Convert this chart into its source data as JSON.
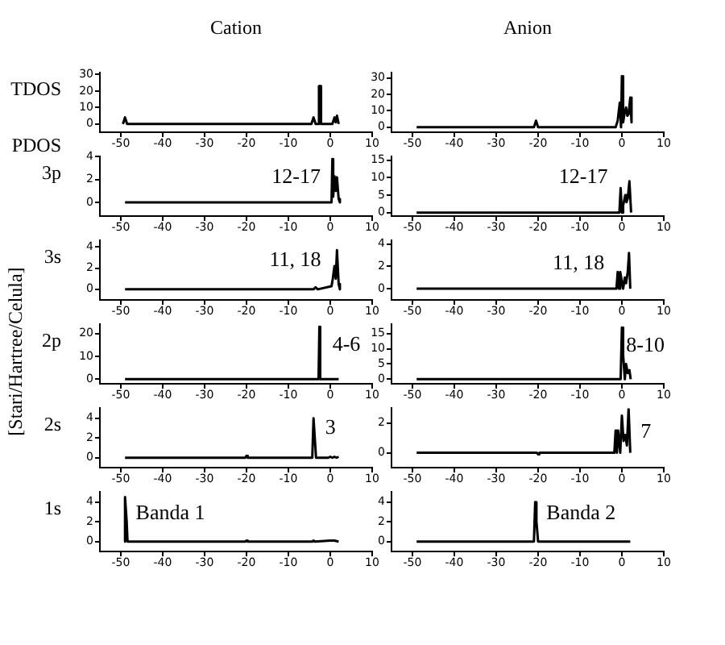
{
  "chart_data": [
    {
      "type": "line",
      "title": "Cation",
      "ylabel": "TDOS",
      "color": "#000000",
      "x": [
        -49.5,
        -49,
        -48.5,
        -4.5,
        -4,
        -3.5,
        -2.8,
        -2.7,
        -2.3,
        -2.2,
        0.5,
        1,
        1.3,
        1.6,
        2
      ],
      "values": [
        0,
        4,
        0,
        0,
        4,
        0,
        0,
        23,
        23,
        0,
        0,
        4,
        1,
        5,
        0
      ],
      "xlim": [
        -55,
        10
      ],
      "xticks": [
        -50,
        -40,
        -30,
        -20,
        -10,
        0,
        10
      ],
      "ylim": [
        -5,
        31
      ],
      "yticks": [
        0,
        10,
        20,
        30
      ]
    },
    {
      "type": "line",
      "title": "Anion",
      "color": "#000000",
      "x": [
        -49,
        -21,
        -20.5,
        -20,
        -1.5,
        -1,
        -0.5,
        -0.2,
        0,
        0.3,
        0.6,
        1,
        1.3,
        1.6,
        2,
        2.3
      ],
      "values": [
        0,
        0,
        4,
        0,
        0,
        4,
        15,
        0,
        31,
        3,
        8,
        12,
        7,
        8,
        18,
        3
      ],
      "xlim": [
        -55,
        10
      ],
      "xticks": [
        -50,
        -40,
        -30,
        -20,
        -10,
        0,
        10
      ],
      "ylim": [
        -3,
        33
      ],
      "yticks": [
        0,
        10,
        20,
        30
      ]
    },
    {
      "type": "line",
      "ylabel": "3p",
      "color": "#000000",
      "x": [
        -49,
        0.3,
        0.5,
        0.7,
        1,
        1.3,
        1.6,
        2,
        2.3
      ],
      "values": [
        0,
        0,
        3.8,
        0.5,
        2.3,
        1,
        2.2,
        0.3,
        0
      ],
      "xlim": [
        -55,
        10
      ],
      "xticks": [
        -50,
        -40,
        -30,
        -20,
        -10,
        0,
        10
      ],
      "ylim": [
        -1.2,
        4
      ],
      "yticks": [
        0,
        2,
        4
      ],
      "annotations": [
        "PDOS",
        "12-17"
      ]
    },
    {
      "type": "line",
      "color": "#000000",
      "x": [
        -49,
        -0.6,
        -0.3,
        0,
        0.3,
        0.8,
        1.1,
        1.4,
        1.8,
        2.2
      ],
      "values": [
        0,
        0,
        7,
        0,
        2,
        5,
        3,
        4,
        9,
        0
      ],
      "xlim": [
        -55,
        10
      ],
      "xticks": [
        -50,
        -40,
        -30,
        -20,
        -10,
        0,
        10
      ],
      "ylim": [
        -1,
        16
      ],
      "yticks": [
        0,
        5,
        10,
        15
      ],
      "annotations": [
        "12-17"
      ]
    },
    {
      "type": "line",
      "ylabel": "3s",
      "color": "#000000",
      "x": [
        -49,
        -4,
        -3.5,
        -3,
        0.3,
        0.6,
        1,
        1.3,
        1.6,
        2,
        2.3
      ],
      "values": [
        0,
        0,
        0.2,
        0,
        0.3,
        1,
        2.2,
        1,
        3.7,
        0.5,
        0
      ],
      "xlim": [
        -55,
        10
      ],
      "xticks": [
        -50,
        -40,
        -30,
        -20,
        -10,
        0,
        10
      ],
      "ylim": [
        -1,
        4.6
      ],
      "yticks": [
        0,
        2,
        4
      ],
      "annotations": [
        "11, 18"
      ]
    },
    {
      "type": "line",
      "color": "#000000",
      "x": [
        -49,
        -1.3,
        -1,
        -0.7,
        -0.4,
        0.3,
        0.7,
        1,
        1.4,
        1.7,
        2,
        2.3
      ],
      "values": [
        0,
        0,
        1.5,
        0,
        1.5,
        0,
        1,
        0.5,
        1.5,
        3.2,
        0,
        0
      ],
      "xlim": [
        -55,
        10
      ],
      "xticks": [
        -50,
        -40,
        -30,
        -20,
        -10,
        0,
        10
      ],
      "ylim": [
        -1,
        4.3
      ],
      "yticks": [
        0,
        2,
        4
      ],
      "annotations": [
        "11, 18"
      ]
    },
    {
      "type": "line",
      "ylabel": "2p",
      "color": "#000000",
      "x": [
        -49,
        -2.8,
        -2.6,
        -2.4,
        2
      ],
      "values": [
        0,
        0,
        23,
        0,
        0
      ],
      "xlim": [
        -55,
        10
      ],
      "xticks": [
        -50,
        -40,
        -30,
        -20,
        -10,
        0,
        10
      ],
      "ylim": [
        -2,
        24
      ],
      "yticks": [
        0,
        10,
        20
      ],
      "annotations": [
        "[Stari/Hartree/Celula]",
        "4-6"
      ]
    },
    {
      "type": "line",
      "color": "#000000",
      "x": [
        -49,
        -0.3,
        0,
        0.3,
        0.7,
        1,
        1.4,
        1.8,
        2.1
      ],
      "values": [
        0,
        0,
        17,
        8,
        0,
        5,
        2,
        3,
        0
      ],
      "xlim": [
        -55,
        10
      ],
      "xticks": [
        -50,
        -40,
        -30,
        -20,
        -10,
        0,
        10
      ],
      "ylim": [
        -1.5,
        18
      ],
      "yticks": [
        0,
        5,
        10,
        15
      ],
      "annotations": [
        "8-10"
      ]
    },
    {
      "type": "line",
      "ylabel": "2s",
      "color": "#000000",
      "x": [
        -49,
        -20.3,
        -20,
        -19.7,
        -4.3,
        -4,
        -3.7,
        -3.4,
        -0.5,
        0,
        0.5,
        1,
        1.5,
        2
      ],
      "values": [
        0,
        0,
        0.2,
        0,
        0,
        4,
        2,
        0,
        0,
        0.1,
        0,
        0.1,
        0,
        0.1
      ],
      "xlim": [
        -55,
        10
      ],
      "xticks": [
        -50,
        -40,
        -30,
        -20,
        -10,
        0,
        10
      ],
      "ylim": [
        -1,
        5
      ],
      "yticks": [
        0,
        2,
        4
      ],
      "annotations": [
        "3"
      ]
    },
    {
      "type": "line",
      "color": "#000000",
      "x": [
        -49,
        -20.3,
        -20,
        -19.7,
        -1.8,
        -1.5,
        -1.2,
        -0.9,
        -0.4,
        0,
        0.4,
        0.8,
        1.2,
        1.6,
        2
      ],
      "values": [
        0,
        0,
        -0.1,
        0,
        0,
        1.5,
        0,
        1.5,
        0,
        2.5,
        0.8,
        1.2,
        0.5,
        3,
        0
      ],
      "xlim": [
        -55,
        10
      ],
      "xticks": [
        -50,
        -40,
        -30,
        -20,
        -10,
        0,
        10
      ],
      "ylim": [
        -1,
        3
      ],
      "yticks": [
        0,
        2
      ],
      "annotations": [
        "7"
      ]
    },
    {
      "type": "line",
      "ylabel": "1s",
      "color": "#000000",
      "x": [
        -49.2,
        -49,
        -48.6,
        -48.4,
        -20.3,
        -20,
        -19.7,
        -4.3,
        -4,
        -3.7,
        0,
        1,
        2
      ],
      "values": [
        0,
        4.5,
        2,
        0,
        0,
        0.1,
        0,
        0,
        0.1,
        0,
        0.1,
        0.1,
        0
      ],
      "xlim": [
        -55,
        10
      ],
      "xticks": [
        -50,
        -40,
        -30,
        -20,
        -10,
        0,
        10
      ],
      "ylim": [
        -1,
        5
      ],
      "yticks": [
        0,
        2,
        4
      ],
      "annotations": [
        "Banda 1"
      ]
    },
    {
      "type": "line",
      "color": "#000000",
      "x": [
        -49,
        -21,
        -20.7,
        -20.4,
        -20,
        2
      ],
      "values": [
        0,
        0,
        4,
        2,
        0,
        0
      ],
      "xlim": [
        -55,
        10
      ],
      "xticks": [
        -50,
        -40,
        -30,
        -20,
        -10,
        0,
        10
      ],
      "ylim": [
        -1,
        5
      ],
      "yticks": [
        0,
        2,
        4
      ],
      "annotations": [
        "Banda 2"
      ]
    }
  ]
}
